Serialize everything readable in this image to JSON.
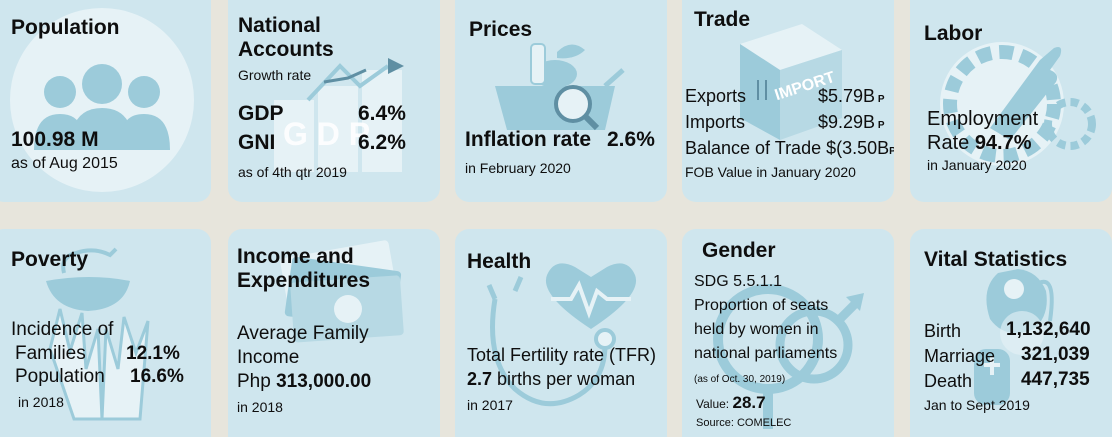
{
  "population": {
    "title": "Population",
    "value": "100.98 M",
    "note": "as of Aug 2015"
  },
  "national_accounts": {
    "title1": "National",
    "title2": "Accounts",
    "subtitle": "Growth rate",
    "gdp_label": "GDP",
    "gdp_value": "6.4%",
    "gni_label": "GNI",
    "gni_value": "6.2%",
    "note": "as of 4th qtr 2019",
    "art_letters": "G D P"
  },
  "prices": {
    "title": "Prices",
    "label": "Inflation rate",
    "value": "2.6%",
    "note": "in February 2020"
  },
  "trade": {
    "title": "Trade",
    "exports_label": "Exports",
    "exports_value": "$5.79B",
    "imports_label": "Imports",
    "imports_value": "$9.29B",
    "balance_label": "Balance of Trade",
    "balance_value": "$(3.50B",
    "balance_close": ")",
    "flag": "P",
    "note": "FOB Value in January 2020",
    "crate_text": "IMPORT"
  },
  "labor": {
    "title": "Labor",
    "label1": "Employment",
    "label2": "Rate",
    "value": "94.7%",
    "note": "in January 2020"
  },
  "poverty": {
    "title": "Poverty",
    "heading": "Incidence of",
    "families_label": "Families",
    "families_value": "12.1%",
    "population_label": "Population",
    "population_value": "16.6%",
    "note": "in 2018"
  },
  "income": {
    "title1": "Income and",
    "title2": "Expenditures",
    "label1": "Average Family",
    "label2": "Income",
    "value_prefix": "Php",
    "value": "313,000.00",
    "note": "in 2018"
  },
  "health": {
    "title": "Health",
    "label": "Total Fertility rate (TFR)",
    "value": "2.7",
    "value_suffix": "births per woman",
    "note": "in 2017"
  },
  "gender": {
    "title": "Gender",
    "line1": "SDG 5.5.1.1",
    "line2": "Proportion of seats",
    "line3": "held by women in",
    "line4": "national parliaments",
    "asof": "(as of Oct. 30, 2019)",
    "value_label": "Value:",
    "value": "28.7",
    "source": "Source: COMELEC"
  },
  "vital": {
    "title": "Vital Statistics",
    "birth_label": "Birth",
    "birth_value": "1,132,640",
    "marriage_label": "Marriage",
    "marriage_value": "321,039",
    "death_label": "Death",
    "death_value": "447,735",
    "note": "Jan to Sept 2019"
  },
  "colors": {
    "card": "#cfe6ee",
    "icon": "#9ccbda",
    "background": "#e7e5dc",
    "text": "#0e0e0e"
  }
}
